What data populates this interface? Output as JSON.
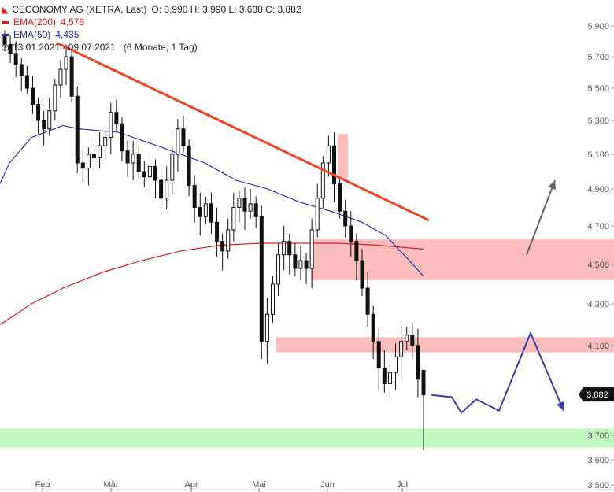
{
  "header": {
    "title": "CECONOMY AG (XETRA, Last)",
    "ohlc": "O: 3,990  H: 3,990  L: 3,638  C: 3,882",
    "ema200_label": "EMA(200)",
    "ema200_value": "4,576",
    "ema50_label": "EMA(50)",
    "ema50_value": "4,435",
    "range": "13.01.2021 - 09.07.2021",
    "period": "(6 Monate, 1 Tag)"
  },
  "colors": {
    "ema200": "#e41a1c",
    "ema50": "#1f2aa8",
    "trendline": "#ee4422",
    "resistance_zone": "#fbbcbc",
    "support_zone": "#bff7bf",
    "projection": "#3b3bb0",
    "up_arrow": "#666666",
    "candle": "#111111"
  },
  "last_price": "3,882",
  "chart_data": {
    "type": "candlestick",
    "x_axis_labels": [
      "Feb",
      "Mär",
      "Apr",
      "Mai",
      "Jun",
      "Jul"
    ],
    "y_ticks": [
      "5,900",
      "5,700",
      "5,500",
      "5,300",
      "5,100",
      "4,900",
      "4,700",
      "4,500",
      "4,300",
      "4,100",
      "3,700",
      "3,600",
      "3,500"
    ],
    "ylim": [
      3.5,
      5.95
    ],
    "grid": false,
    "closes_approx": [
      5.78,
      5.72,
      5.65,
      5.58,
      5.5,
      5.4,
      5.3,
      5.25,
      5.36,
      5.52,
      5.62,
      5.7,
      5.45,
      5.05,
      5.02,
      5.1,
      5.08,
      5.15,
      5.2,
      5.35,
      5.28,
      5.12,
      5.05,
      5.1,
      5.0,
      4.97,
      5.03,
      4.95,
      4.85,
      4.95,
      5.1,
      5.25,
      5.15,
      4.92,
      4.8,
      4.75,
      4.82,
      4.72,
      4.62,
      4.57,
      4.68,
      4.8,
      4.85,
      4.78,
      4.82,
      4.75,
      4.12,
      4.25,
      4.4,
      4.55,
      4.62,
      4.55,
      4.48,
      4.52,
      4.48,
      4.68,
      4.85,
      5.05,
      5.15,
      4.93,
      4.78,
      4.7,
      4.62,
      4.52,
      4.38,
      4.25,
      4.12,
      4.0,
      3.93,
      3.98,
      4.05,
      4.12,
      4.15,
      4.1,
      3.95,
      3.88
    ],
    "ema50": [
      [
        0,
        4.93
      ],
      [
        12,
        5.05
      ],
      [
        40,
        5.2
      ],
      [
        80,
        5.27
      ],
      [
        100,
        5.25
      ],
      [
        150,
        5.23
      ],
      [
        200,
        5.15
      ],
      [
        260,
        5.05
      ],
      [
        300,
        4.95
      ],
      [
        340,
        4.9
      ],
      [
        380,
        4.83
      ],
      [
        420,
        4.78
      ],
      [
        460,
        4.72
      ],
      [
        490,
        4.65
      ],
      [
        520,
        4.52
      ],
      [
        538,
        4.44
      ]
    ],
    "ema200": [
      [
        0,
        4.2
      ],
      [
        40,
        4.3
      ],
      [
        80,
        4.38
      ],
      [
        130,
        4.46
      ],
      [
        180,
        4.52
      ],
      [
        230,
        4.57
      ],
      [
        280,
        4.6
      ],
      [
        330,
        4.61
      ],
      [
        380,
        4.61
      ],
      [
        430,
        4.61
      ],
      [
        480,
        4.6
      ],
      [
        538,
        4.58
      ]
    ],
    "trendline": [
      [
        72,
        5.79
      ],
      [
        545,
        4.73
      ]
    ],
    "resistance_zones": [
      [
        4.42,
        4.63
      ],
      [
        4.07,
        4.14
      ]
    ],
    "support_zone": [
      3.65,
      3.73
    ],
    "highlight_zone": [
      4.96,
      5.22
    ],
    "projection_path": [
      [
        548,
        3.88
      ],
      [
        574,
        3.87
      ],
      [
        586,
        3.8
      ],
      [
        605,
        3.86
      ],
      [
        634,
        3.81
      ],
      [
        674,
        4.16
      ],
      [
        716,
        3.81
      ]
    ],
    "up_arrow": [
      [
        669,
        4.55
      ],
      [
        705,
        4.95
      ]
    ]
  }
}
